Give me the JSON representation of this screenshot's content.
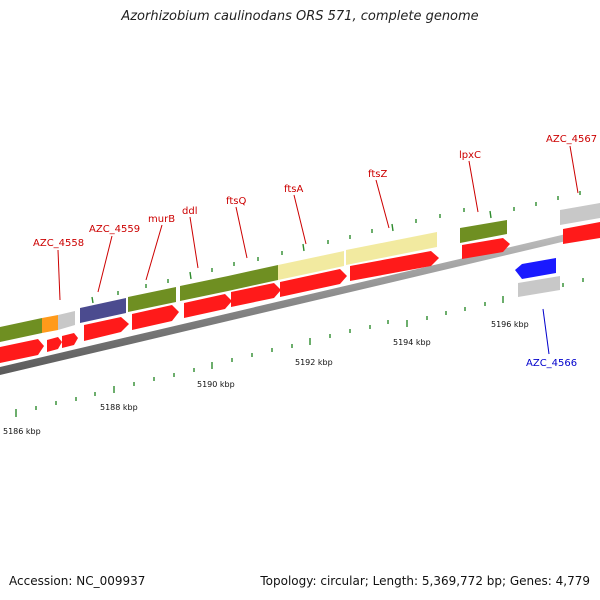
{
  "title": "Azorhizobium caulinodans ORS 571, complete genome",
  "footer": {
    "accession": "Accession: NC_009937",
    "info": "Topology: circular; Length: 5,369,772 bp; Genes: 4,779"
  },
  "colors": {
    "cds": "#ff1a1a",
    "gene_green": "#6f8f22",
    "gene_yellow": "#f2eaa0",
    "gene_navy": "#4b4b8f",
    "gene_orange": "#ff9a1a",
    "gene_grey": "#c8c8c8",
    "minus_strand": "#1a1aff",
    "label_plus": "#cc0000",
    "label_minus": "#0000cc",
    "tick": "#2e8b2e"
  },
  "kbp_labels": [
    "5186 kbp",
    "5188 kbp",
    "5190 kbp",
    "5192 kbp",
    "5194 kbp",
    "5196 kbp"
  ],
  "gene_labels": [
    "AZC_4558",
    "AZC_4559",
    "murB",
    "ddl",
    "ftsQ",
    "ftsA",
    "ftsZ",
    "lpxC",
    "AZC_4567",
    "AZC_4566"
  ]
}
